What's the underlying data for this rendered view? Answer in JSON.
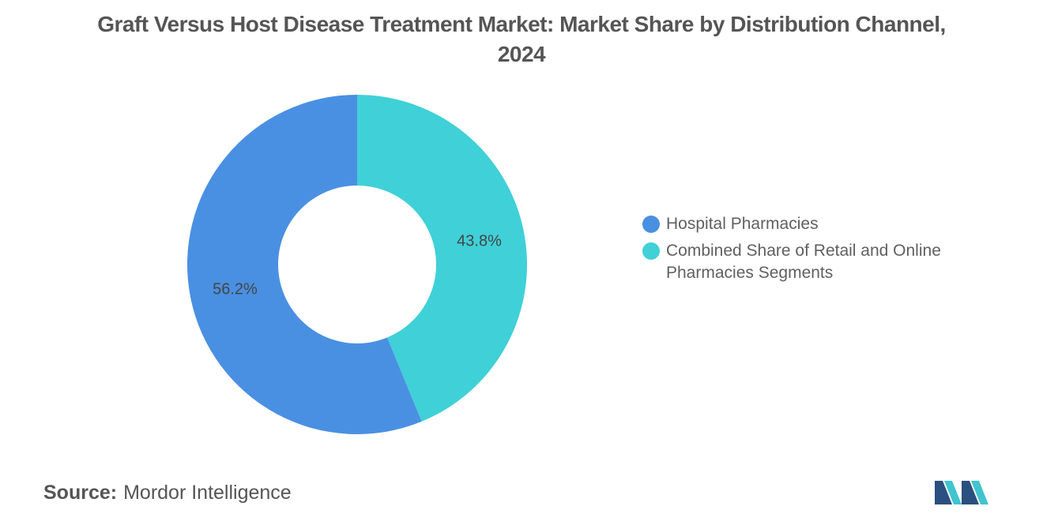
{
  "chart_data": {
    "type": "pie",
    "donut": true,
    "title": "Graft Versus Host Disease Treatment Market: Market Share by Distribution Channel, 2024",
    "categories": [
      "Hospital Pharmacies",
      "Combined Share of Retail and Online Pharmacies Segments"
    ],
    "values": [
      56.2,
      43.8
    ],
    "data_labels": [
      "56.2%",
      "43.8%"
    ],
    "colors": [
      "#4A90E2",
      "#40D0D8"
    ],
    "legend_position": "right"
  },
  "source": {
    "label": "Source:",
    "text": "Mordor Intelligence"
  },
  "logo": {
    "icon": "mordor-intelligence-logo-icon",
    "colors": [
      "#2B4F7E",
      "#40C4D0"
    ]
  }
}
